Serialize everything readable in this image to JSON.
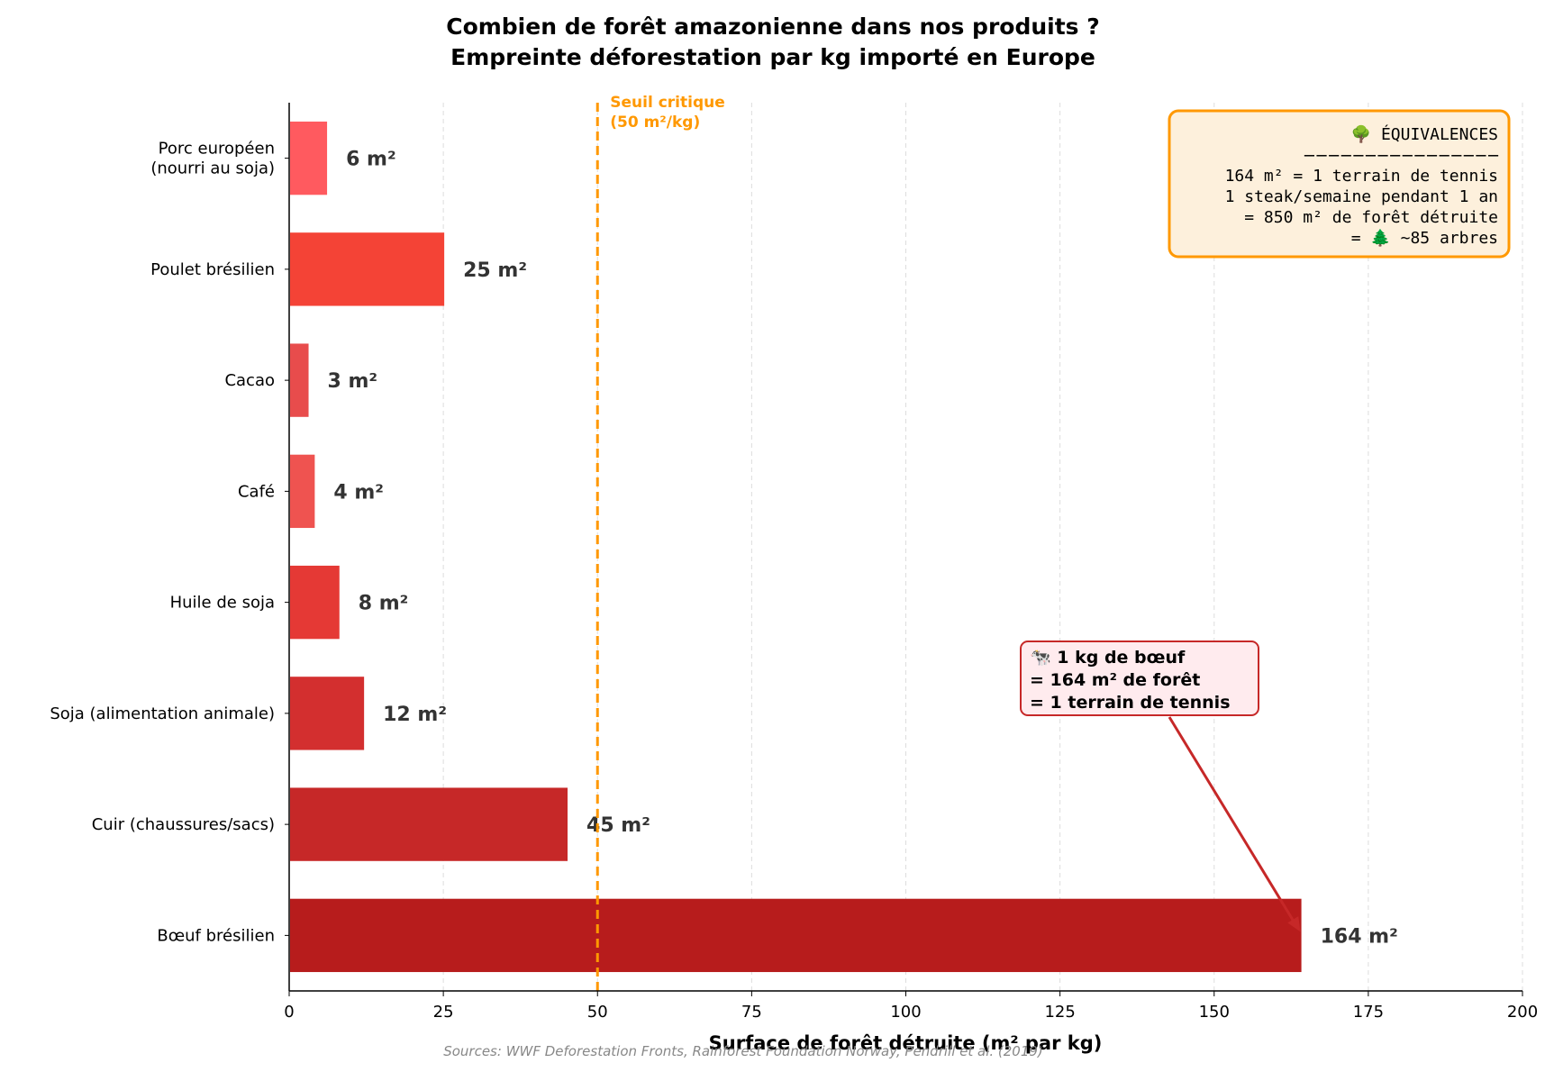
{
  "chart_data": {
    "type": "bar",
    "orientation": "horizontal",
    "title": "Combien de forêt amazonienne dans nos produits ?",
    "subtitle": "Empreinte déforestation par kg importé en Europe",
    "xlabel": "Surface de forêt détruite (m² par kg)",
    "ylabel": "",
    "xlim": [
      0,
      200
    ],
    "xticks": [
      0,
      25,
      50,
      75,
      100,
      125,
      150,
      175,
      200
    ],
    "grid": "vertical dashed",
    "categories": [
      "Porc européen\n(nourri au soja)",
      "Poulet brésilien",
      "Cacao",
      "Café",
      "Huile de soja",
      "Soja (alimentation animale)",
      "Cuir (chaussures/sacs)",
      "Bœuf brésilien"
    ],
    "values": [
      6,
      25,
      3,
      4,
      8,
      12,
      45,
      164
    ],
    "value_labels": [
      "6 m²",
      "25 m²",
      "3 m²",
      "4 m²",
      "8 m²",
      "12 m²",
      "45 m²",
      "164 m²"
    ],
    "colors": [
      "#ff5a5f",
      "#f44336",
      "#e84c4c",
      "#ef5350",
      "#e53935",
      "#d32f2f",
      "#c62828",
      "#b71c1c"
    ],
    "threshold": {
      "value": 50,
      "label_line1": "Seuil critique",
      "label_line2": "(50 m²/kg)",
      "color": "#ff9800"
    },
    "annotation": {
      "lines": [
        "🐄 1 kg de bœuf",
        "= 164 m² de forêt",
        "= 1 terrain de tennis"
      ],
      "target_value": 164,
      "target_category": "Bœuf brésilien"
    },
    "equivalences": {
      "lines": [
        "🌳 ÉQUIVALENCES",
        "────────────────",
        "164 m² = 1 terrain de tennis",
        "1 steak/semaine pendant 1 an",
        "= 850 m² de forêt détruite",
        "= 🌲 ~85 arbres"
      ]
    },
    "source": "Sources: WWF Deforestation Fronts, Rainforest Foundation Norway, Pendrill et al. (2019)"
  }
}
